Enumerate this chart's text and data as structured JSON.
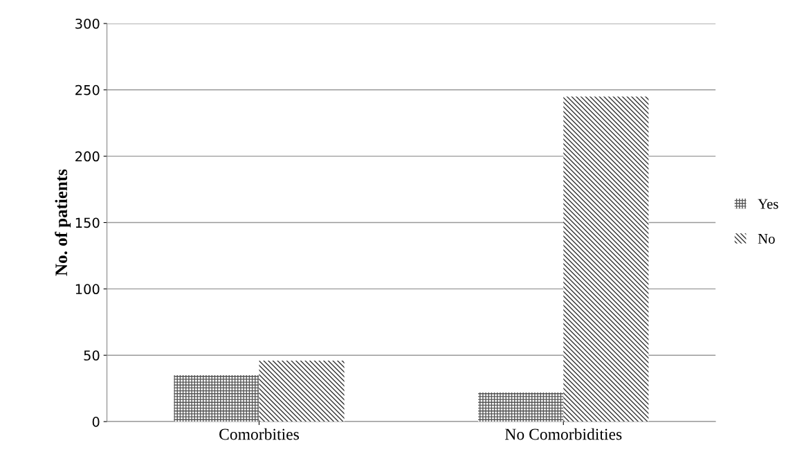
{
  "chart_data": {
    "type": "bar",
    "ylabel": "No. of patients",
    "categories": [
      "Comorbities",
      "No Comorbidities"
    ],
    "series": [
      {
        "name": "Yes",
        "color": "#555555",
        "values": [
          35,
          22
        ]
      },
      {
        "name": "No",
        "color": "#333333",
        "values": [
          46,
          245
        ]
      }
    ],
    "ylim": [
      0,
      300
    ],
    "yticks": [
      0,
      50,
      100,
      150,
      200,
      250,
      300
    ],
    "grid": "y",
    "legend": "right"
  }
}
